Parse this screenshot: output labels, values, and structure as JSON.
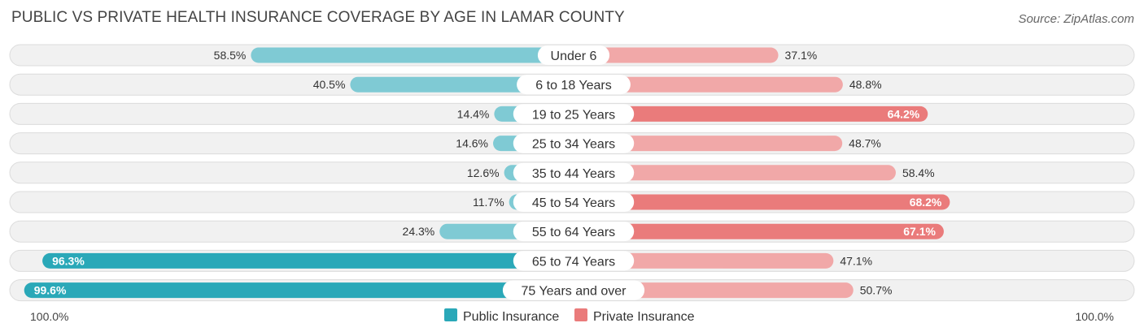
{
  "title": "PUBLIC VS PRIVATE HEALTH INSURANCE COVERAGE BY AGE IN LAMAR COUNTY",
  "source": "Source: ZipAtlas.com",
  "colors": {
    "public_strong": "#2aa8b8",
    "public_light": "#7fcad4",
    "private_strong": "#ea7b7b",
    "private_light": "#f1a8a8"
  },
  "chart_data": {
    "type": "bar",
    "orientation": "horizontal-diverging",
    "categories": [
      "Under 6",
      "6 to 18 Years",
      "19 to 25 Years",
      "25 to 34 Years",
      "35 to 44 Years",
      "45 to 54 Years",
      "55 to 64 Years",
      "65 to 74 Years",
      "75 Years and over"
    ],
    "series": [
      {
        "name": "Public Insurance",
        "values": [
          58.5,
          40.5,
          14.4,
          14.6,
          12.6,
          11.7,
          24.3,
          96.3,
          99.6
        ],
        "labels": [
          "58.5%",
          "40.5%",
          "14.4%",
          "14.6%",
          "12.6%",
          "11.7%",
          "24.3%",
          "96.3%",
          "99.6%"
        ]
      },
      {
        "name": "Private Insurance",
        "values": [
          37.1,
          48.8,
          64.2,
          48.7,
          58.4,
          68.2,
          67.1,
          47.1,
          50.7
        ],
        "labels": [
          "37.1%",
          "48.8%",
          "64.2%",
          "48.7%",
          "58.4%",
          "68.2%",
          "67.1%",
          "47.1%",
          "50.7%"
        ]
      }
    ],
    "axis": {
      "min": 0,
      "max": 100,
      "left_label": "100.0%",
      "right_label": "100.0%"
    },
    "legend_position": "bottom-center"
  }
}
